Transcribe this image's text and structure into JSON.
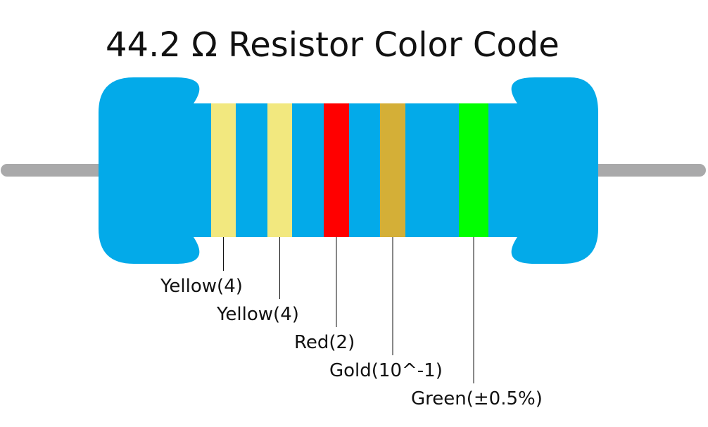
{
  "title": "44.2 Ω Resistor Color Code",
  "bands": [
    {
      "label": "Yellow(4)",
      "color": "#f2e87f"
    },
    {
      "label": "Yellow(4)",
      "color": "#f2e87f"
    },
    {
      "label": "Red(2)",
      "color": "#ff0000"
    },
    {
      "label": "Gold(10^-1)",
      "color": "#d4af37"
    },
    {
      "label": "Green(±0.5%)",
      "color": "#00ff00"
    }
  ]
}
